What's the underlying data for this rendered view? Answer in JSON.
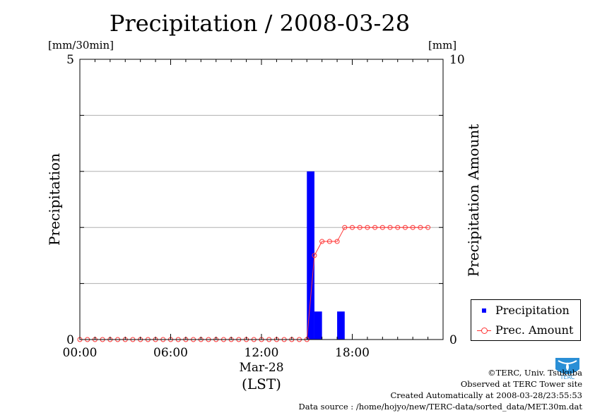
{
  "title": "Precipitation / 2008-03-28",
  "left_unit": "[mm/30min]",
  "right_unit": "[mm]",
  "chart_data": {
    "type": "bar",
    "x_tick_labels": [
      "00:00",
      "06:00",
      "12:00",
      "18:00"
    ],
    "x_tick_hours": [
      0,
      6,
      12,
      18
    ],
    "x_date_label": "Mar-28",
    "xlabel": "(LST)",
    "xlim": [
      0,
      24
    ],
    "ylabel": "Precipitation",
    "ylim": [
      0,
      5
    ],
    "y_tick_labels": [
      "0",
      "5"
    ],
    "y2label": "Precipitation Amount",
    "y2lim": [
      0,
      10
    ],
    "y2_tick_labels": [
      "0",
      "10"
    ],
    "grid": "horizontal",
    "legend_position": "right-bottom",
    "series": [
      {
        "name": "Precipitation",
        "type": "bar",
        "axis": "left",
        "color": "#0000ff",
        "time_hours": [
          15.0,
          15.5,
          17.0
        ],
        "values": [
          3.0,
          0.5,
          0.5
        ]
      },
      {
        "name": "Prec. Amount",
        "type": "line",
        "axis": "right",
        "color": "#ff3333",
        "time_hours": [
          0,
          0.5,
          1,
          1.5,
          2,
          2.5,
          3,
          3.5,
          4,
          4.5,
          5,
          5.5,
          6,
          6.5,
          7,
          7.5,
          8,
          8.5,
          9,
          9.5,
          10,
          10.5,
          11,
          11.5,
          12,
          12.5,
          13,
          13.5,
          14,
          14.5,
          15,
          15.5,
          16,
          16.5,
          17,
          17.5,
          18,
          18.5,
          19,
          19.5,
          20,
          20.5,
          21,
          21.5,
          22,
          22.5,
          23
        ],
        "values": [
          0,
          0,
          0,
          0,
          0,
          0,
          0,
          0,
          0,
          0,
          0,
          0,
          0,
          0,
          0,
          0,
          0,
          0,
          0,
          0,
          0,
          0,
          0,
          0,
          0,
          0,
          0,
          0,
          0,
          0,
          0,
          3,
          3.5,
          3.5,
          3.5,
          4,
          4,
          4,
          4,
          4,
          4,
          4,
          4,
          4,
          4,
          4,
          4
        ]
      }
    ]
  },
  "credits": [
    "©TERC, Univ. Tsukuba",
    "Observed at TERC Tower site",
    "Created Automatically at 2008-03-28/23:55:53",
    "Data source : /home/hojyo/new/TERC-data/sorted_data/MET.30m.dat"
  ],
  "logo_text": "TERC"
}
